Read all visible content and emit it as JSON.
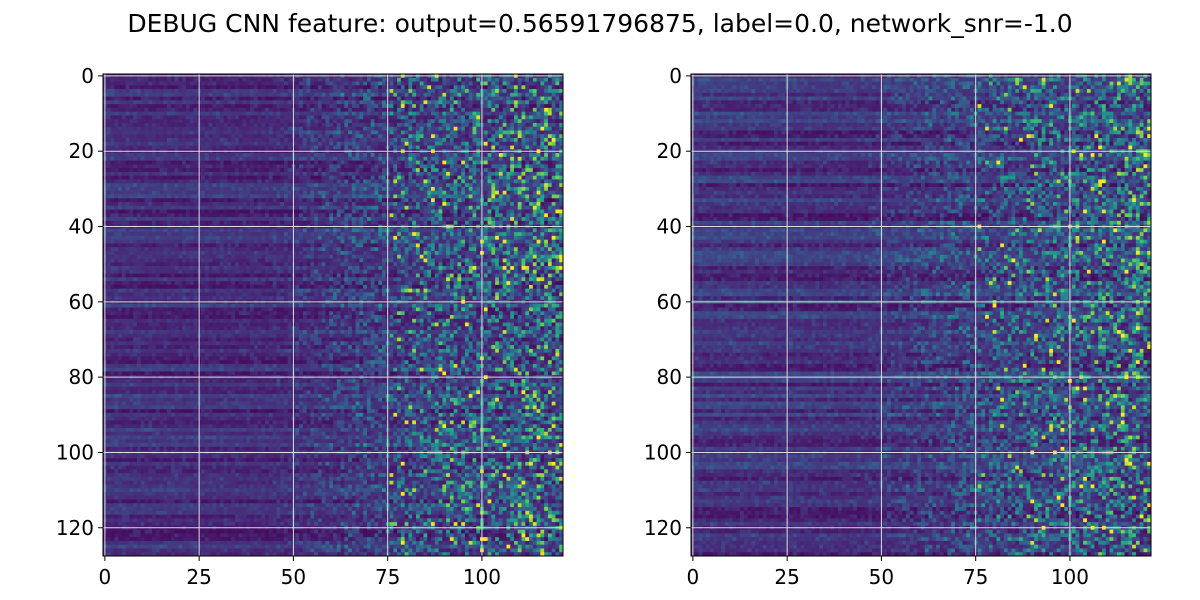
{
  "title": "DEBUG CNN feature: output=0.56591796875, label=0.0, network_snr=-1.0",
  "chart_data": [
    {
      "type": "heatmap",
      "name": "",
      "rows": 128,
      "cols": 122,
      "colormap": "viridis",
      "grid": true,
      "xlim": [
        -0.5,
        121.5
      ],
      "ylim": [
        127.5,
        -0.5
      ],
      "xticks": [
        0,
        25,
        50,
        75,
        100
      ],
      "yticks": [
        0,
        20,
        40,
        60,
        80,
        100,
        120
      ],
      "description_of_values": "low (dark purple) on left columns 0-50, increasing noisy variance toward right, bright yellow/green speckles beyond column 75",
      "max_value_hint": 1.0
    },
    {
      "type": "heatmap",
      "name": "",
      "rows": 128,
      "cols": 122,
      "colormap": "viridis",
      "grid": true,
      "xlim": [
        -0.5,
        121.5
      ],
      "ylim": [
        127.5,
        -0.5
      ],
      "xticks": [
        0,
        25,
        50,
        75,
        100
      ],
      "yticks": [
        0,
        20,
        40,
        60,
        80,
        100,
        120
      ],
      "description_of_values": "low (dark purple) on left columns, noisier speckles toward right, fewer bright values than left panel",
      "max_value_hint": 0.8
    }
  ],
  "colors": {
    "grid": "#dddddd",
    "viridis": [
      "#440154",
      "#482878",
      "#3e4989",
      "#31688e",
      "#26828e",
      "#1f9e89",
      "#35b779",
      "#6ece58",
      "#b5de2b",
      "#fde725"
    ]
  }
}
